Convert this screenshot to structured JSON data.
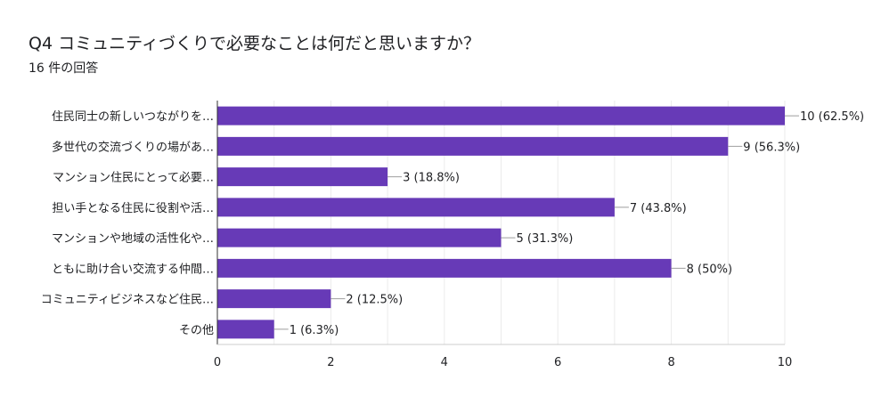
{
  "header": {
    "title": "Q4 コミュニティづくりで必要なことは何だと思いますか？",
    "subtitle": "16 件の回答"
  },
  "colors": {
    "bar": "#673ab7",
    "grid": "#ebebeb",
    "axis": "#333333",
    "leader": "#9e9e9e"
  },
  "chart_data": {
    "type": "bar",
    "orientation": "horizontal",
    "title": "",
    "xlabel": "",
    "ylabel": "",
    "xlim": [
      0,
      10
    ],
    "xticks": [
      0,
      2,
      4,
      6,
      8,
      10
    ],
    "grid": true,
    "categories": [
      "住民同士の新しいつながりを…",
      "多世代の交流づくりの場があ…",
      "マンション住民にとって必要…",
      "担い手となる住民に役割や活…",
      "マンションや地域の活性化や…",
      "ともに助け合い交流する仲間…",
      "コミュニティビジネスなど住民…",
      "その他"
    ],
    "values": [
      10,
      9,
      3,
      7,
      5,
      8,
      2,
      1
    ],
    "data_labels": [
      "10 (62.5%)",
      "9 (56.3%)",
      "3 (18.8%)",
      "7 (43.8%)",
      "5 (31.3%)",
      "8 (50%)",
      "2 (12.5%)",
      "1 (6.3%)"
    ]
  }
}
